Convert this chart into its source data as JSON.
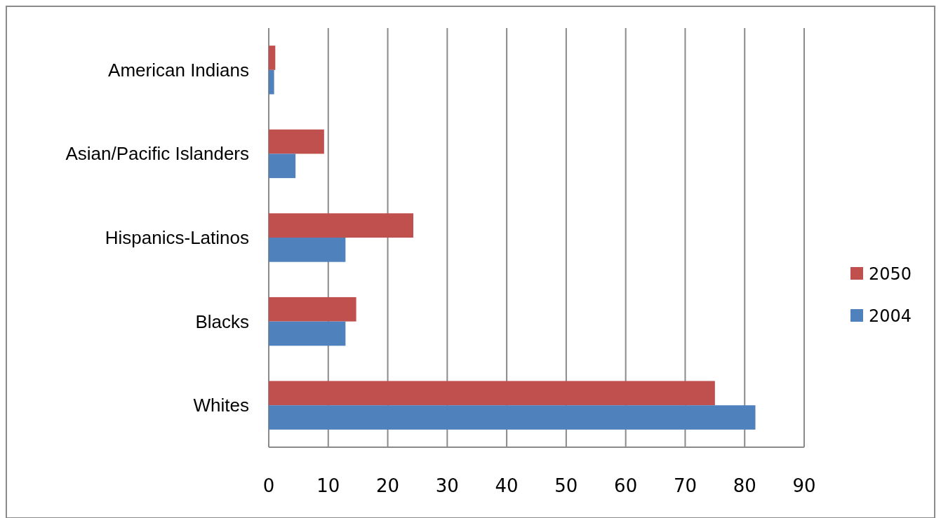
{
  "chart_data": {
    "type": "bar",
    "orientation": "horizontal",
    "categories": [
      "American Indians",
      "Asian/Pacific Islanders",
      "Hispanics-Latinos",
      "Blacks",
      "Whites"
    ],
    "series": [
      {
        "name": "2050",
        "color": "#c0504d",
        "values": [
          1.1,
          9.3,
          24.3,
          14.7,
          75.0
        ]
      },
      {
        "name": "2004",
        "color": "#4f81bd",
        "values": [
          0.9,
          4.5,
          12.9,
          12.9,
          81.8
        ]
      }
    ],
    "xlim": [
      0,
      90
    ],
    "xticks": [
      0,
      10,
      20,
      30,
      40,
      50,
      60,
      70,
      80,
      90
    ],
    "grid": "x",
    "legend": "right"
  }
}
